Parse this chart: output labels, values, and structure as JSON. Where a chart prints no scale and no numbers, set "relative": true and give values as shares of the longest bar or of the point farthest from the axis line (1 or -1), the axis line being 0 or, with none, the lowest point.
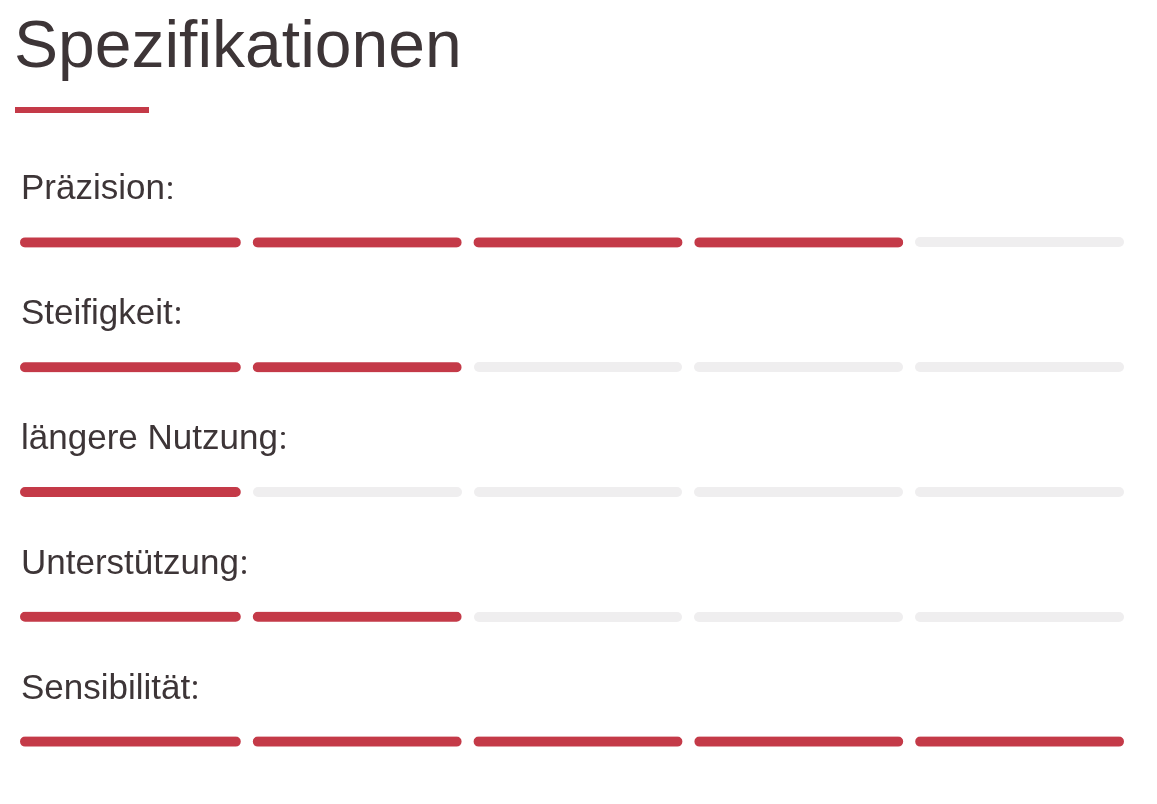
{
  "chart_data": {
    "type": "bar",
    "title": "Spezifikationen",
    "orientation": "horizontal",
    "relative": true,
    "categories": [
      "Präzision",
      "Steifigkeit",
      "längere Nutzung",
      "Unterstützung",
      "Sensibilität"
    ],
    "values": [
      0.8,
      0.4,
      0.2,
      0.4,
      1
    ],
    "color": "#c43a48"
  }
}
